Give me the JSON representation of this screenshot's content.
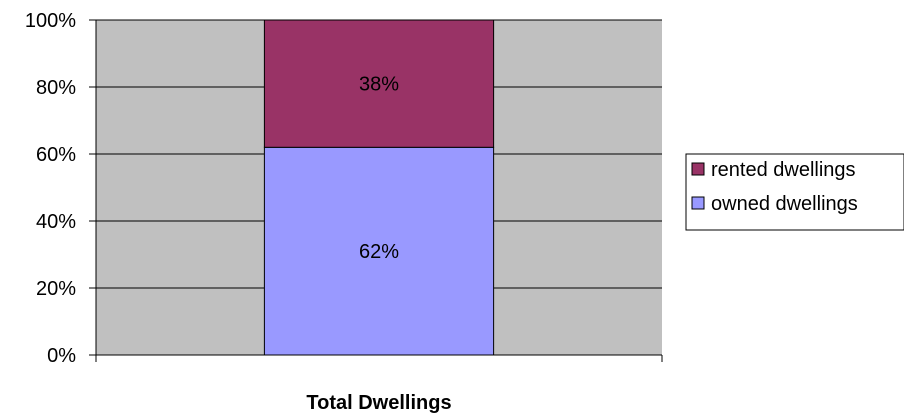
{
  "chart_data": {
    "type": "bar",
    "stacked": true,
    "percent": true,
    "categories": [
      "Total Dwellings"
    ],
    "series": [
      {
        "name": "owned dwellings",
        "values": [
          62
        ],
        "label": "62%",
        "color": "#9999ff"
      },
      {
        "name": "rented dwellings",
        "values": [
          38
        ],
        "label": "38%",
        "color": "#993366"
      }
    ],
    "ylim": [
      0,
      100
    ],
    "y_ticks": [
      {
        "value": 0,
        "label": "0%"
      },
      {
        "value": 20,
        "label": "20%"
      },
      {
        "value": 40,
        "label": "40%"
      },
      {
        "value": 60,
        "label": "60%"
      },
      {
        "value": 80,
        "label": "80%"
      },
      {
        "value": 100,
        "label": "100%"
      }
    ],
    "grid": true,
    "plot_background": "#c0c0c0",
    "legend_position": "right",
    "legend": [
      "rented dwellings",
      "owned dwellings"
    ]
  }
}
